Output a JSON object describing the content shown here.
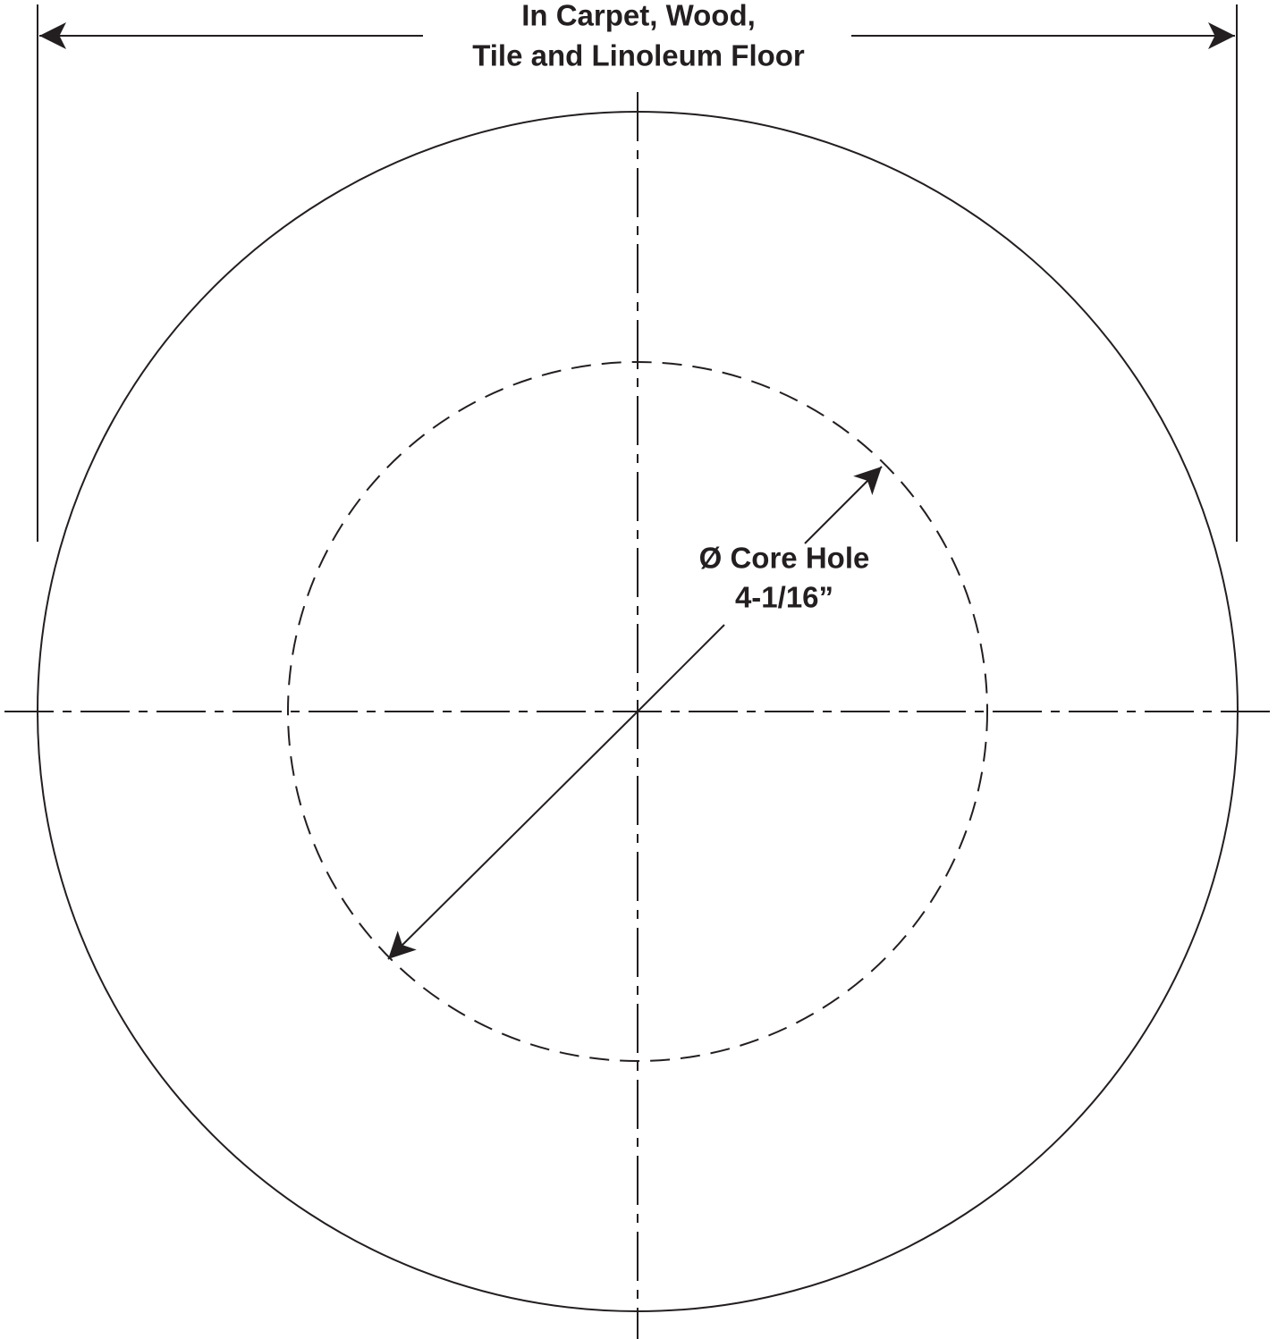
{
  "width_label": {
    "lines": [
      "In Carpet, Wood,",
      "Tile and Linoleum Floor"
    ]
  },
  "core_hole_label": {
    "lines": [
      "Ø Core Hole",
      "4-1/16”"
    ]
  }
}
